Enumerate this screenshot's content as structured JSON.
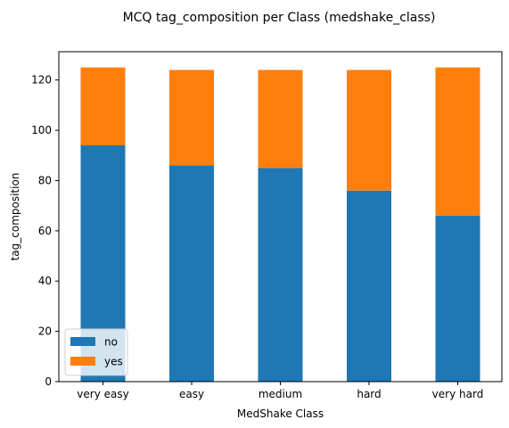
{
  "chart_data": {
    "type": "bar",
    "stacked": true,
    "title": "MCQ tag_composition per Class (medshake_class)",
    "xlabel": "MedShake Class",
    "ylabel": "tag_composition",
    "categories": [
      "very easy",
      "easy",
      "medium",
      "hard",
      "very hard"
    ],
    "series": [
      {
        "name": "no",
        "color": "#1f77b4",
        "values": [
          94,
          86,
          85,
          76,
          66
        ]
      },
      {
        "name": "yes",
        "color": "#ff7f0e",
        "values": [
          31,
          38,
          39,
          48,
          59
        ]
      }
    ],
    "ylim": [
      0,
      131.25
    ],
    "yticks": [
      0,
      20,
      40,
      60,
      80,
      100,
      120
    ],
    "grid": false,
    "legend_position": "lower-left"
  }
}
